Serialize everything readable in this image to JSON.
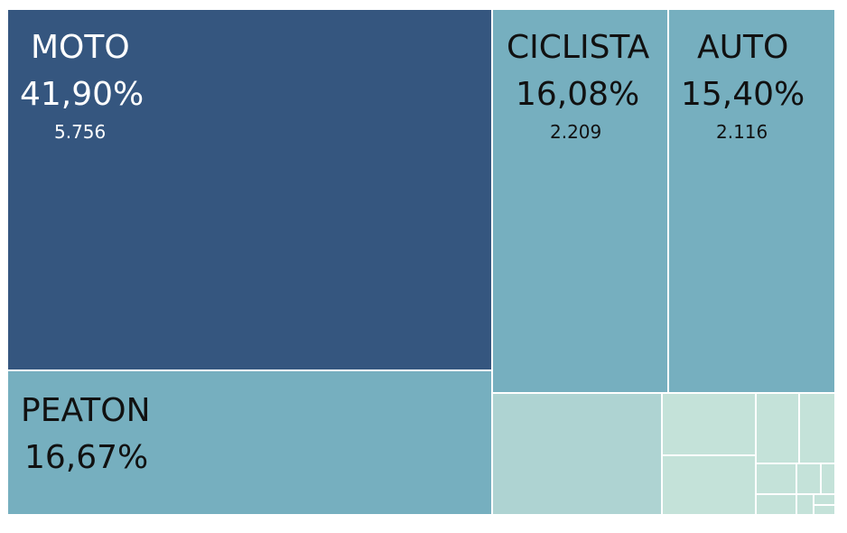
{
  "chart_data": {
    "type": "treemap",
    "items": [
      {
        "name": "MOTO",
        "percent": "41,90%",
        "count": "5.756",
        "value": 5756,
        "color": "#35567f"
      },
      {
        "name": "PEATON",
        "percent": "16,67%",
        "count": "",
        "value": 2290,
        "color": "#76afbf"
      },
      {
        "name": "CICLISTA",
        "percent": "16,08%",
        "count": "2.209",
        "value": 2209,
        "color": "#76afbf"
      },
      {
        "name": "AUTO",
        "percent": "15,40%",
        "count": "2.116",
        "value": 2116,
        "color": "#76afbf"
      }
    ],
    "unlabeled_values": [
      560,
      225,
      190,
      140,
      110,
      80,
      45,
      30,
      25,
      16,
      10,
      6
    ],
    "unlabeled_colors": [
      "#aed3d2",
      "#c4e2d9"
    ]
  }
}
